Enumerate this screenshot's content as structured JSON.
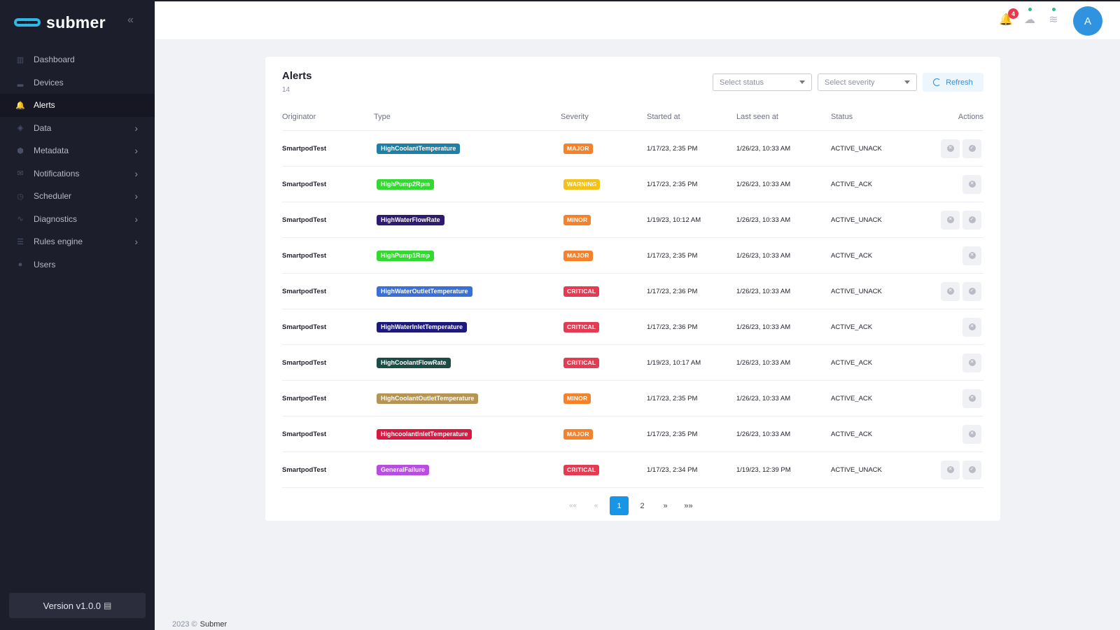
{
  "brand": {
    "name": "submer",
    "logo_icon": "submer-logo-icon"
  },
  "sidebar": {
    "items": [
      {
        "label": "Dashboard",
        "icon": "dashboard-icon",
        "glyph": "▥",
        "chevron": false,
        "active": false
      },
      {
        "label": "Devices",
        "icon": "devices-icon",
        "glyph": "▂",
        "chevron": false,
        "active": false
      },
      {
        "label": "Alerts",
        "icon": "bell-icon",
        "glyph": "🔔",
        "chevron": false,
        "active": true
      },
      {
        "label": "Data",
        "icon": "layers-icon",
        "glyph": "◈",
        "chevron": true,
        "active": false
      },
      {
        "label": "Metadata",
        "icon": "cube-icon",
        "glyph": "⬢",
        "chevron": true,
        "active": false
      },
      {
        "label": "Notifications",
        "icon": "envelope-icon",
        "glyph": "✉",
        "chevron": true,
        "active": false
      },
      {
        "label": "Scheduler",
        "icon": "clock-icon",
        "glyph": "◷",
        "chevron": true,
        "active": false
      },
      {
        "label": "Diagnostics",
        "icon": "pulse-icon",
        "glyph": "∿",
        "chevron": true,
        "active": false
      },
      {
        "label": "Rules engine",
        "icon": "list-icon",
        "glyph": "☰",
        "chevron": true,
        "active": false
      },
      {
        "label": "Users",
        "icon": "user-icon",
        "glyph": "●",
        "chevron": false,
        "active": false
      }
    ],
    "version": "Version v1.0.0"
  },
  "topbar": {
    "notification_count": "4",
    "avatar_initial": "A"
  },
  "alerts": {
    "title": "Alerts",
    "count": "14",
    "status_placeholder": "Select status",
    "severity_placeholder": "Select severity",
    "refresh_label": "Refresh",
    "columns": [
      "Originator",
      "Type",
      "Severity",
      "Started at",
      "Last seen at",
      "Status",
      "Actions"
    ],
    "rows": [
      {
        "originator": "SmartpodTest",
        "type": "HighCoolantTemperature",
        "type_color": "#1f7fa6",
        "severity": "MAJOR",
        "severity_color": "#f5822a",
        "started": "1/17/23, 2:35 PM",
        "last_seen": "1/26/23, 10:33 AM",
        "status": "ACTIVE_UNACK"
      },
      {
        "originator": "SmartpodTest",
        "type": "HighPump2Rpm",
        "type_color": "#35d832",
        "severity": "WARNING",
        "severity_color": "#f2c21b",
        "started": "1/17/23, 2:35 PM",
        "last_seen": "1/26/23, 10:33 AM",
        "status": "ACTIVE_ACK"
      },
      {
        "originator": "SmartpodTest",
        "type": "HighWaterFlowRate",
        "type_color": "#2e1a6e",
        "severity": "MINOR",
        "severity_color": "#f5822a",
        "started": "1/19/23, 10:12 AM",
        "last_seen": "1/26/23, 10:33 AM",
        "status": "ACTIVE_UNACK"
      },
      {
        "originator": "SmartpodTest",
        "type": "HighPump1Rmp",
        "type_color": "#35d832",
        "severity": "MAJOR",
        "severity_color": "#f5822a",
        "started": "1/17/23, 2:35 PM",
        "last_seen": "1/26/23, 10:33 AM",
        "status": "ACTIVE_ACK"
      },
      {
        "originator": "SmartpodTest",
        "type": "HighWaterOutletTemperature",
        "type_color": "#3b6fd8",
        "severity": "CRITICAL",
        "severity_color": "#e43b52",
        "started": "1/17/23, 2:36 PM",
        "last_seen": "1/26/23, 10:33 AM",
        "status": "ACTIVE_UNACK"
      },
      {
        "originator": "SmartpodTest",
        "type": "HighWaterInletTemperature",
        "type_color": "#1d1a7a",
        "severity": "CRITICAL",
        "severity_color": "#e43b52",
        "started": "1/17/23, 2:36 PM",
        "last_seen": "1/26/23, 10:33 AM",
        "status": "ACTIVE_ACK"
      },
      {
        "originator": "SmartpodTest",
        "type": "HighCoolantFlowRate",
        "type_color": "#1b4d47",
        "severity": "CRITICAL",
        "severity_color": "#e43b52",
        "started": "1/19/23, 10:17 AM",
        "last_seen": "1/26/23, 10:33 AM",
        "status": "ACTIVE_ACK"
      },
      {
        "originator": "SmartpodTest",
        "type": "HighCoolantOutletTemperature",
        "type_color": "#b49556",
        "severity": "MINOR",
        "severity_color": "#f5822a",
        "started": "1/17/23, 2:35 PM",
        "last_seen": "1/26/23, 10:33 AM",
        "status": "ACTIVE_ACK"
      },
      {
        "originator": "SmartpodTest",
        "type": "HighcoolantInletTemperature",
        "type_color": "#d9193f",
        "severity": "MAJOR",
        "severity_color": "#f5822a",
        "started": "1/17/23, 2:35 PM",
        "last_seen": "1/26/23, 10:33 AM",
        "status": "ACTIVE_ACK"
      },
      {
        "originator": "SmartpodTest",
        "type": "GeneralFailure",
        "type_color": "#b64fe0",
        "severity": "CRITICAL",
        "severity_color": "#e43b52",
        "started": "1/17/23, 2:34 PM",
        "last_seen": "1/19/23, 12:39 PM",
        "status": "ACTIVE_UNACK"
      }
    ],
    "pager": {
      "first": "««",
      "prev": "«",
      "pages": [
        "1",
        "2"
      ],
      "current": "1",
      "next": "»",
      "last": "»»"
    }
  },
  "footer": {
    "year": "2023 ©",
    "company": "Submer"
  }
}
